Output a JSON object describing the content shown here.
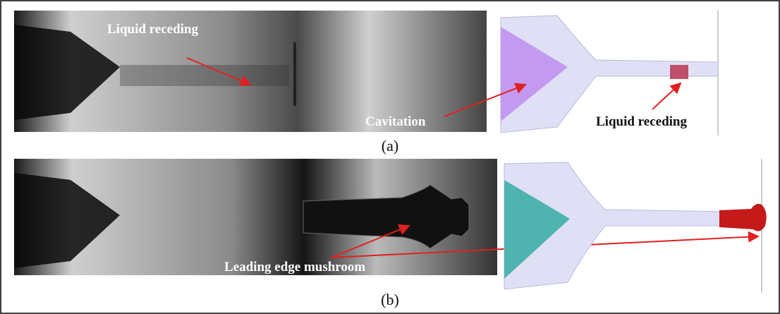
{
  "panels": [
    {
      "label": "(a)",
      "annotations": [
        "Liquid receding",
        "Cavitation",
        "Liquid receding"
      ]
    },
    {
      "label": "(b)",
      "annotations": [
        "Leading edge mushroom"
      ]
    }
  ]
}
